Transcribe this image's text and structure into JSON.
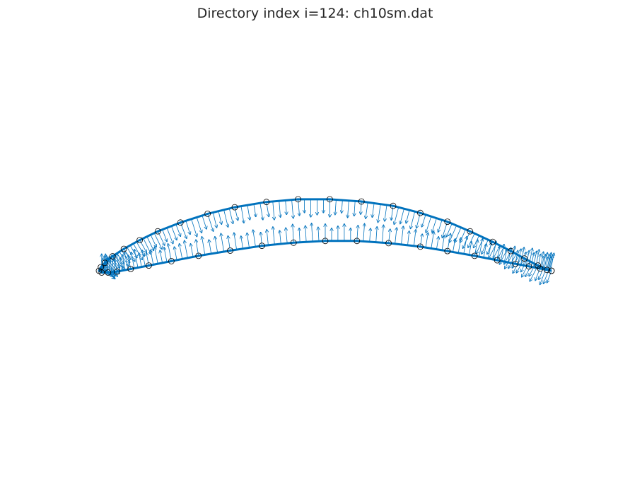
{
  "figure": {
    "title": "Directory index i=124: ch10sm.dat"
  },
  "colors": {
    "curve": "#0072bd",
    "arrows": "#0072bd",
    "markers": "#000000",
    "background": "#ffffff",
    "title": "#262626"
  },
  "chart_data": {
    "type": "scatter",
    "description_of_marks": "airfoil outline with circle markers and outward normal vectors",
    "axes_visible": false,
    "grid": false,
    "x": [
      1.0,
      0.97,
      0.94,
      0.91,
      0.87,
      0.82,
      0.77,
      0.71,
      0.65,
      0.58,
      0.51,
      0.44,
      0.37,
      0.3,
      0.24,
      0.18,
      0.13,
      0.09,
      0.055,
      0.03,
      0.013,
      0.004,
      0.0,
      0.006,
      0.02,
      0.04,
      0.07,
      0.11,
      0.16,
      0.22,
      0.29,
      0.36,
      0.43,
      0.5,
      0.57,
      0.64,
      0.71,
      0.77,
      0.83,
      0.88,
      0.92,
      0.95,
      0.975,
      0.99,
      1.0
    ],
    "y": [
      0.0,
      0.012,
      0.028,
      0.045,
      0.066,
      0.09,
      0.112,
      0.132,
      0.148,
      0.158,
      0.163,
      0.163,
      0.157,
      0.145,
      0.13,
      0.11,
      0.09,
      0.07,
      0.05,
      0.033,
      0.018,
      0.008,
      0.0,
      -0.004,
      -0.004,
      -0.002,
      0.004,
      0.012,
      0.022,
      0.034,
      0.046,
      0.057,
      0.064,
      0.068,
      0.068,
      0.063,
      0.055,
      0.045,
      0.034,
      0.024,
      0.016,
      0.01,
      0.005,
      0.002,
      0.0
    ]
  }
}
